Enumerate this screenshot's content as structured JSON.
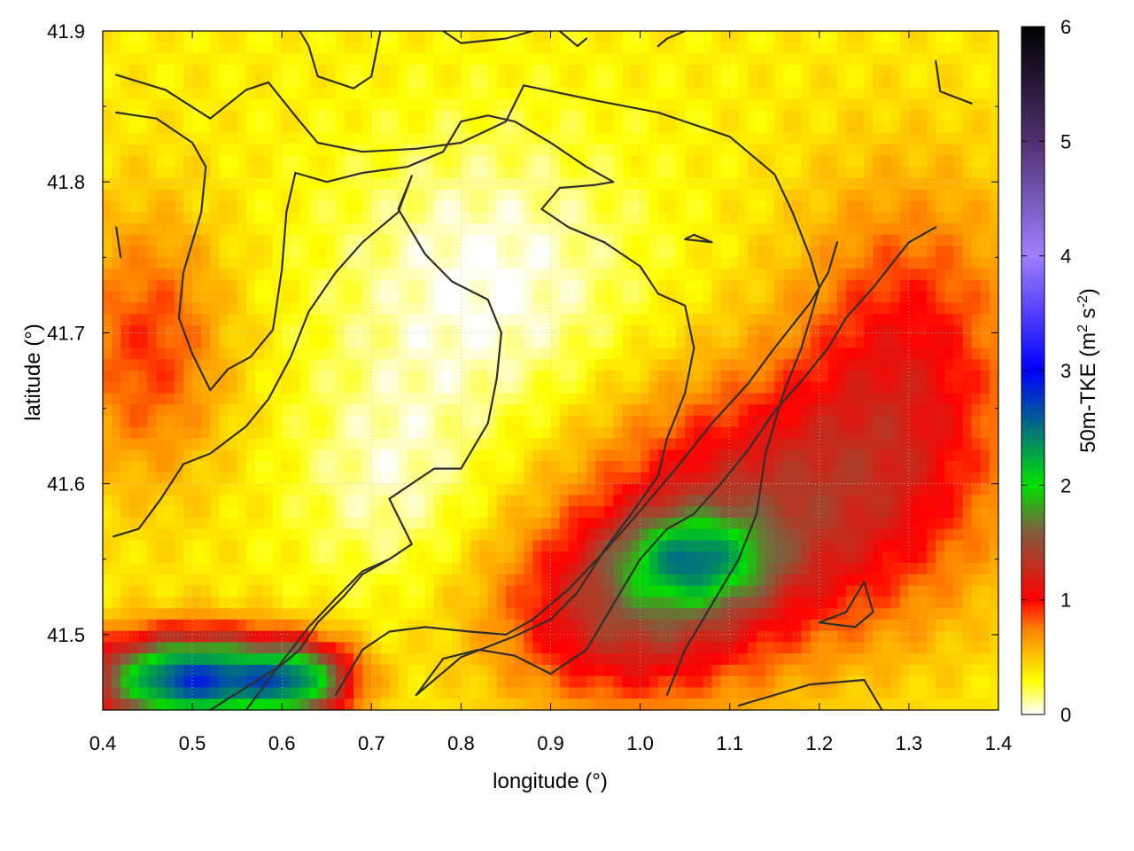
{
  "chart_data": {
    "type": "heatmap",
    "title": "",
    "xlabel": "longitude (°)",
    "ylabel": "latitude (°)",
    "colorbar_label": "50m-TKE (m² s⁻²)",
    "colorbar_label_parts": {
      "main": "50m-TKE (m",
      "sup1": "2",
      "mid": " s",
      "sup2": "-2",
      "end": ")"
    },
    "xlim": [
      0.4,
      1.4
    ],
    "ylim": [
      41.45,
      41.9
    ],
    "clim": [
      0,
      6
    ],
    "x_ticks": [
      "0.4",
      "0.5",
      "0.6",
      "0.7",
      "0.8",
      "0.9",
      "1.0",
      "1.1",
      "1.2",
      "1.3",
      "1.4"
    ],
    "y_ticks": [
      "41.5",
      "41.6",
      "41.7",
      "41.8",
      "41.9"
    ],
    "colorbar_ticks": [
      "0",
      "1",
      "2",
      "3",
      "4",
      "5",
      "6"
    ],
    "grid": true,
    "colormap_stops": [
      {
        "value": 0.0,
        "color": "#ffffff"
      },
      {
        "value": 0.3,
        "color": "#ffff00"
      },
      {
        "value": 0.75,
        "color": "#ff8000"
      },
      {
        "value": 1.0,
        "color": "#ff0000"
      },
      {
        "value": 1.6,
        "color": "#7f5f3f"
      },
      {
        "value": 2.0,
        "color": "#00e000"
      },
      {
        "value": 3.0,
        "color": "#0000ff"
      },
      {
        "value": 4.0,
        "color": "#a080ff"
      },
      {
        "value": 5.0,
        "color": "#503070"
      },
      {
        "value": 6.0,
        "color": "#000000"
      }
    ],
    "field_features": [
      {
        "kind": "background",
        "value": 0.35
      },
      {
        "kind": "low",
        "lon": 0.83,
        "lat": 41.73,
        "rx": 0.17,
        "ry": 0.1,
        "value": -0.35
      },
      {
        "kind": "low",
        "lon": 0.72,
        "lat": 41.6,
        "rx": 0.1,
        "ry": 0.07,
        "value": -0.25
      },
      {
        "kind": "high",
        "lon": 0.45,
        "lat": 41.69,
        "rx": 0.09,
        "ry": 0.09,
        "value": 0.55
      },
      {
        "kind": "high",
        "lon": 1.3,
        "lat": 41.68,
        "rx": 0.13,
        "ry": 0.12,
        "value": 0.65
      },
      {
        "kind": "high",
        "lon": 1.13,
        "lat": 41.58,
        "rx": 0.2,
        "ry": 0.09,
        "value": 0.9
      },
      {
        "kind": "high",
        "lon": 0.98,
        "lat": 41.51,
        "rx": 0.14,
        "ry": 0.06,
        "value": 0.8
      },
      {
        "kind": "high",
        "lon": 1.06,
        "lat": 41.55,
        "rx": 0.08,
        "ry": 0.03,
        "value": 1.1
      },
      {
        "kind": "high",
        "lon": 0.5,
        "lat": 41.47,
        "rx": 0.11,
        "ry": 0.03,
        "value": 2.4
      },
      {
        "kind": "high",
        "lon": 0.62,
        "lat": 41.47,
        "rx": 0.06,
        "ry": 0.025,
        "value": 1.4
      }
    ],
    "contours": [
      [
        [
          0.415,
          41.871
        ],
        [
          0.47,
          41.861
        ],
        [
          0.52,
          41.842
        ],
        [
          0.56,
          41.861
        ],
        [
          0.585,
          41.866
        ],
        [
          0.62,
          41.84
        ],
        [
          0.64,
          41.826
        ],
        [
          0.69,
          41.82
        ],
        [
          0.75,
          41.822
        ],
        [
          0.8,
          41.826
        ],
        [
          0.85,
          41.84
        ],
        [
          0.87,
          41.864
        ],
        [
          0.95,
          41.854
        ],
        [
          1.02,
          41.846
        ],
        [
          1.1,
          41.83
        ],
        [
          1.15,
          41.805
        ],
        [
          1.17,
          41.78
        ],
        [
          1.19,
          41.75
        ],
        [
          1.2,
          41.73
        ],
        [
          1.18,
          41.69
        ],
        [
          1.16,
          41.66
        ],
        [
          1.14,
          41.62
        ],
        [
          1.13,
          41.58
        ],
        [
          1.11,
          41.55
        ],
        [
          1.08,
          41.52
        ],
        [
          1.05,
          41.49
        ],
        [
          1.03,
          41.46
        ]
      ],
      [
        [
          0.415,
          41.846
        ],
        [
          0.46,
          41.842
        ],
        [
          0.5,
          41.826
        ],
        [
          0.515,
          41.81
        ],
        [
          0.51,
          41.78
        ],
        [
          0.49,
          41.74
        ],
        [
          0.485,
          41.71
        ],
        [
          0.5,
          41.686
        ],
        [
          0.52,
          41.662
        ],
        [
          0.54,
          41.676
        ],
        [
          0.565,
          41.684
        ],
        [
          0.59,
          41.702
        ],
        [
          0.6,
          41.742
        ],
        [
          0.605,
          41.78
        ],
        [
          0.615,
          41.806
        ],
        [
          0.65,
          41.8
        ],
        [
          0.69,
          41.806
        ],
        [
          0.74,
          41.81
        ],
        [
          0.78,
          41.82
        ],
        [
          0.8,
          41.84
        ],
        [
          0.83,
          41.844
        ],
        [
          0.86,
          41.84
        ],
        [
          0.9,
          41.826
        ],
        [
          0.94,
          41.81
        ],
        [
          0.97,
          41.8
        ],
        [
          0.95,
          41.798
        ],
        [
          0.91,
          41.796
        ],
        [
          0.89,
          41.782
        ],
        [
          0.92,
          41.77
        ],
        [
          0.96,
          41.76
        ],
        [
          1.0,
          41.744
        ],
        [
          1.02,
          41.726
        ],
        [
          1.05,
          41.718
        ],
        [
          1.06,
          41.69
        ],
        [
          1.05,
          41.66
        ],
        [
          1.03,
          41.63
        ],
        [
          1.02,
          41.605
        ],
        [
          0.99,
          41.58
        ],
        [
          0.96,
          41.556
        ],
        [
          0.93,
          41.528
        ],
        [
          0.9,
          41.51
        ],
        [
          0.86,
          41.499
        ],
        [
          0.8,
          41.485
        ],
        [
          0.75,
          41.46
        ]
      ],
      [
        [
          0.412,
          41.565
        ],
        [
          0.44,
          41.57
        ],
        [
          0.465,
          41.59
        ],
        [
          0.49,
          41.613
        ],
        [
          0.52,
          41.62
        ],
        [
          0.56,
          41.638
        ],
        [
          0.585,
          41.656
        ],
        [
          0.61,
          41.684
        ],
        [
          0.63,
          41.714
        ],
        [
          0.66,
          41.74
        ],
        [
          0.69,
          41.76
        ],
        [
          0.73,
          41.78
        ],
        [
          0.745,
          41.804
        ],
        [
          0.73,
          41.782
        ],
        [
          0.76,
          41.752
        ],
        [
          0.79,
          41.734
        ],
        [
          0.83,
          41.722
        ],
        [
          0.845,
          41.7
        ],
        [
          0.84,
          41.67
        ],
        [
          0.83,
          41.64
        ],
        [
          0.81,
          41.62
        ],
        [
          0.8,
          41.61
        ],
        [
          0.77,
          41.61
        ],
        [
          0.72,
          41.59
        ],
        [
          0.745,
          41.56
        ],
        [
          0.72,
          41.55
        ],
        [
          0.69,
          41.54
        ],
        [
          0.67,
          41.526
        ],
        [
          0.64,
          41.508
        ],
        [
          0.62,
          41.49
        ],
        [
          0.6,
          41.48
        ],
        [
          0.56,
          41.465
        ],
        [
          0.52,
          41.45
        ]
      ],
      [
        [
          0.56,
          41.45
        ],
        [
          0.6,
          41.482
        ],
        [
          0.63,
          41.505
        ],
        [
          0.66,
          41.524
        ],
        [
          0.69,
          41.542
        ],
        [
          0.72,
          41.55
        ]
      ],
      [
        [
          0.66,
          41.46
        ],
        [
          0.69,
          41.49
        ],
        [
          0.72,
          41.502
        ],
        [
          0.76,
          41.505
        ],
        [
          0.81,
          41.502
        ],
        [
          0.85,
          41.5
        ],
        [
          0.88,
          41.51
        ],
        [
          0.92,
          41.53
        ],
        [
          0.96,
          41.555
        ],
        [
          1.0,
          41.582
        ],
        [
          1.04,
          41.61
        ],
        [
          1.08,
          41.64
        ],
        [
          1.12,
          41.666
        ],
        [
          1.15,
          41.69
        ],
        [
          1.19,
          41.72
        ],
        [
          1.21,
          41.74
        ],
        [
          1.22,
          41.76
        ]
      ],
      [
        [
          0.75,
          41.46
        ],
        [
          0.78,
          41.484
        ],
        [
          0.82,
          41.49
        ],
        [
          0.86,
          41.486
        ],
        [
          0.9,
          41.474
        ],
        [
          0.94,
          41.49
        ],
        [
          0.97,
          41.52
        ],
        [
          1.0,
          41.55
        ],
        [
          1.03,
          41.57
        ],
        [
          1.06,
          41.58
        ],
        [
          1.09,
          41.6
        ],
        [
          1.12,
          41.622
        ],
        [
          1.15,
          41.648
        ],
        [
          1.18,
          41.668
        ],
        [
          1.21,
          41.69
        ],
        [
          1.23,
          41.71
        ],
        [
          1.26,
          41.73
        ],
        [
          1.3,
          41.76
        ],
        [
          1.33,
          41.77
        ]
      ],
      [
        [
          1.11,
          41.453
        ],
        [
          1.15,
          41.46
        ],
        [
          1.19,
          41.467
        ],
        [
          1.25,
          41.47
        ],
        [
          1.27,
          41.45
        ]
      ],
      [
        [
          1.2,
          41.508
        ],
        [
          1.24,
          41.505
        ],
        [
          1.26,
          41.515
        ],
        [
          1.25,
          41.535
        ],
        [
          1.23,
          41.515
        ],
        [
          1.2,
          41.508
        ]
      ],
      [
        [
          1.33,
          41.88
        ],
        [
          1.335,
          41.86
        ],
        [
          1.37,
          41.852
        ]
      ],
      [
        [
          0.415,
          41.77
        ],
        [
          0.42,
          41.75
        ]
      ],
      [
        [
          1.06,
          41.765
        ],
        [
          1.08,
          41.76
        ],
        [
          1.05,
          41.762
        ],
        [
          1.06,
          41.765
        ]
      ],
      [
        [
          0.62,
          41.9
        ],
        [
          0.63,
          41.89
        ],
        [
          0.64,
          41.87
        ],
        [
          0.68,
          41.862
        ],
        [
          0.7,
          41.87
        ],
        [
          0.71,
          41.9
        ]
      ],
      [
        [
          0.78,
          41.9
        ],
        [
          0.8,
          41.892
        ],
        [
          0.85,
          41.895
        ],
        [
          0.88,
          41.9
        ]
      ],
      [
        [
          0.91,
          41.9
        ],
        [
          0.93,
          41.89
        ],
        [
          0.94,
          41.895
        ]
      ],
      [
        [
          1.02,
          41.89
        ],
        [
          1.03,
          41.895
        ],
        [
          1.05,
          41.9
        ]
      ]
    ]
  }
}
